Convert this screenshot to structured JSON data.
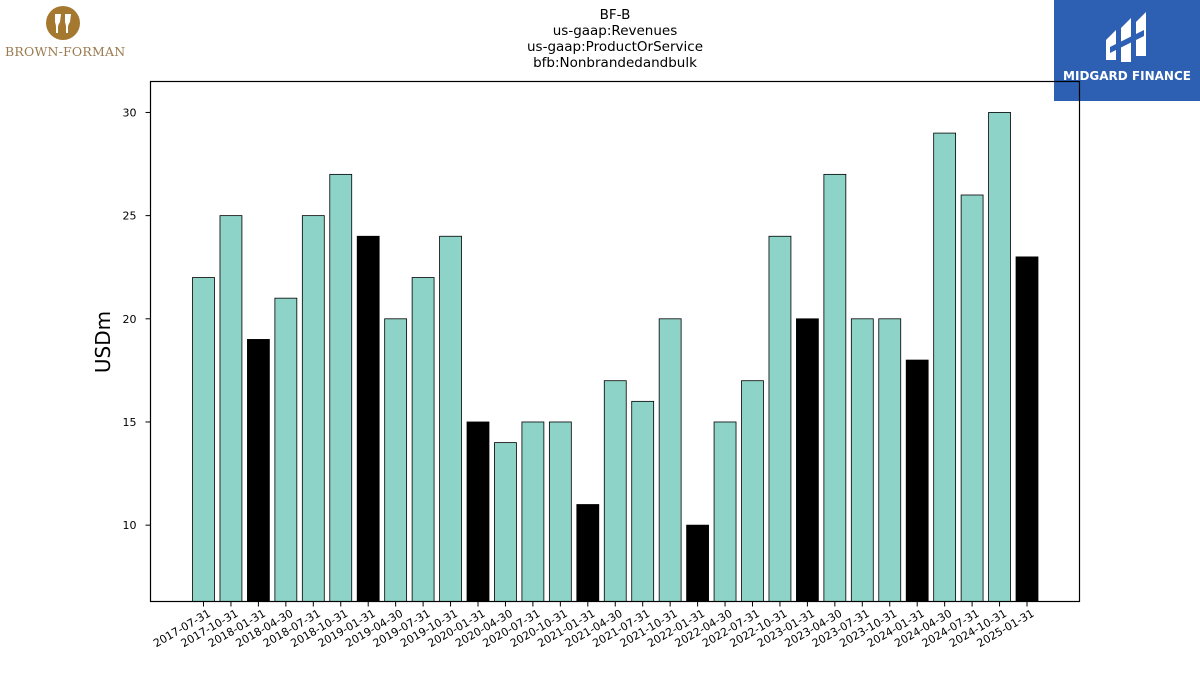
{
  "logos": {
    "left_brand": "BROWN-FORMAN",
    "right_brand": "MIDGARD FINANCE"
  },
  "chart_data": {
    "type": "bar",
    "title_lines": [
      "BF-B",
      "us-gaap:Revenues",
      "us-gaap:ProductOrService",
      "bfb:Nonbrandedandbulk"
    ],
    "xlabel": "",
    "ylabel": "USDm",
    "ylim": [
      6.3,
      31.5
    ],
    "yticks": [
      10,
      15,
      20,
      25,
      30
    ],
    "grid": false,
    "colors": {
      "quarter": "#8dd3c7",
      "fiscal_q3": "#000000",
      "edge": "#000000"
    },
    "categories": [
      "2017-07-31",
      "2017-10-31",
      "2018-01-31",
      "2018-04-30",
      "2018-07-31",
      "2018-10-31",
      "2019-01-31",
      "2019-04-30",
      "2019-07-31",
      "2019-10-31",
      "2020-01-31",
      "2020-04-30",
      "2020-07-31",
      "2020-10-31",
      "2021-01-31",
      "2021-04-30",
      "2021-07-31",
      "2021-10-31",
      "2022-01-31",
      "2022-04-30",
      "2022-07-31",
      "2022-10-31",
      "2023-01-31",
      "2023-04-30",
      "2023-07-31",
      "2023-10-31",
      "2024-01-31",
      "2024-04-30",
      "2024-07-31",
      "2024-10-31",
      "2025-01-31"
    ],
    "values": [
      22,
      25,
      19,
      21,
      25,
      27,
      24,
      20,
      22,
      24,
      15,
      14,
      15,
      15,
      11,
      17,
      16,
      20,
      10,
      15,
      17,
      24,
      20,
      27,
      20,
      20,
      18,
      29,
      26,
      30,
      23
    ],
    "highlight": [
      false,
      false,
      true,
      false,
      false,
      false,
      true,
      false,
      false,
      false,
      true,
      false,
      false,
      false,
      true,
      false,
      false,
      false,
      true,
      false,
      false,
      false,
      true,
      false,
      false,
      false,
      true,
      false,
      false,
      false,
      true
    ]
  }
}
